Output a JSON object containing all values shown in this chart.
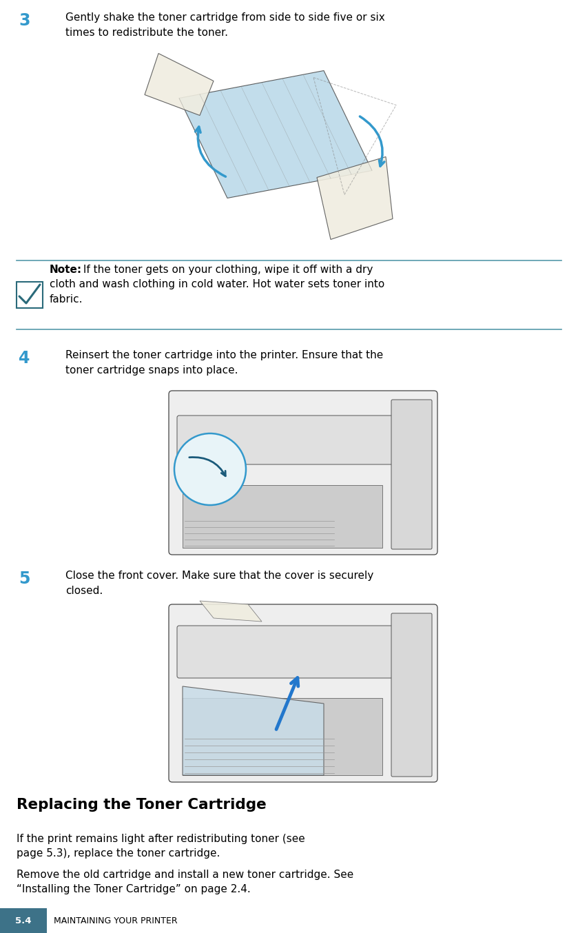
{
  "bg_color": "#ffffff",
  "page_width": 8.39,
  "page_height": 13.54,
  "step3_number": "3",
  "step3_text_line1": "Gently shake the toner cartridge from side to side five or six",
  "step3_text_line2": "times to redistribute the toner.",
  "note_bold": "Note:",
  "note_text1": " If the toner gets on your clothing, wipe it off with a dry",
  "note_text2": "cloth and wash clothing in cold water. Hot water sets toner into",
  "note_text3": "fabric.",
  "step4_number": "4",
  "step4_text_line1": "Reinsert the toner cartridge into the printer. Ensure that the",
  "step4_text_line2": "toner cartridge snaps into place.",
  "step5_number": "5",
  "step5_text_line1": "Close the front cover. Make sure that the cover is securely",
  "step5_text_line2": "closed.",
  "section_title": "Replacing the Toner Cartridge",
  "section_para1_line1": "If the print remains light after redistributing toner (see",
  "section_para1_line2": "page 5.3), replace the toner cartridge.",
  "section_para2_line1": "Remove the old cartridge and install a new toner cartridge. See",
  "section_para2_line2": "“Installing the Toner Cartridge” on page 2.4.",
  "footer_box_color": "#3d7288",
  "footer_number": "5.4",
  "footer_text": "MAINTAINING YOUR PRINTER",
  "step_num_color": "#3399cc",
  "text_color": "#000000",
  "separator_color": "#5599aa",
  "note_icon_color": "#2a6a7a",
  "body_font_size": 11.0,
  "step_num_font_size": 17,
  "section_title_font_size": 15.5,
  "footer_label_font_size": 9.5,
  "footer_text_font_size": 9.0
}
